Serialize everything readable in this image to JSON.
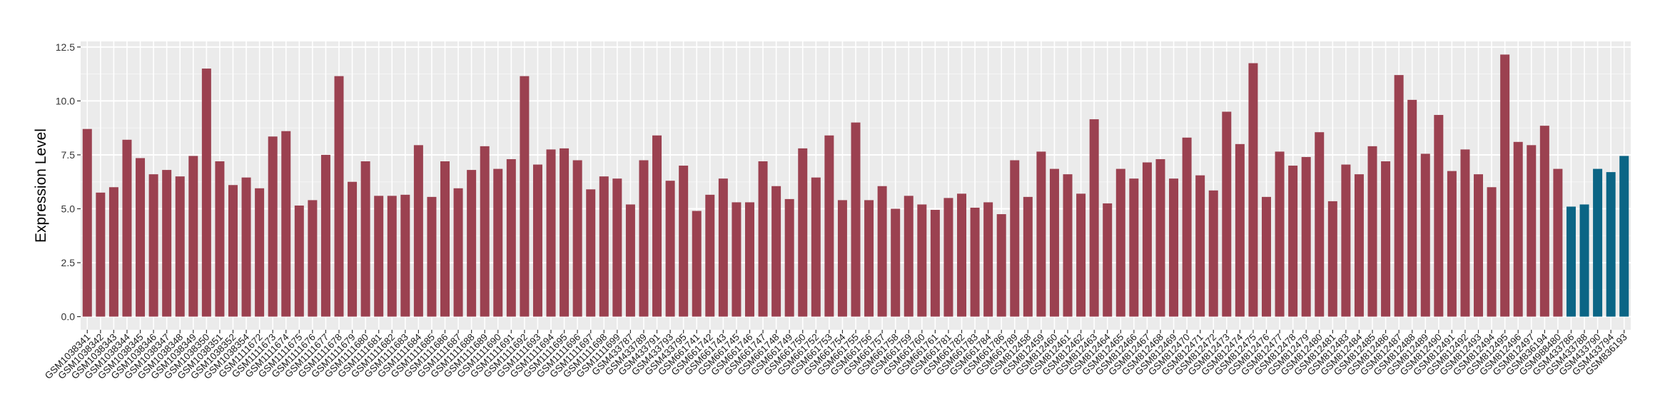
{
  "chart_data": {
    "type": "bar",
    "title": "",
    "xlabel": "",
    "ylabel": "Expression Level",
    "ylim": [
      -0.61,
      12.76
    ],
    "yticks": [
      "0.0",
      "2.5",
      "5.0",
      "7.5",
      "10.0",
      "12.5"
    ],
    "ytick_values": [
      0,
      2.5,
      5,
      7.5,
      10,
      12.5
    ],
    "grid": true,
    "legend": "none",
    "colors": {
      "group1": "#9B4150",
      "group2": "#0B6585",
      "panel": "#EBEBEB",
      "grid": "#FFFFFF"
    },
    "categories": [
      "GSM1038341",
      "GSM1038342",
      "GSM1038343",
      "GSM1038344",
      "GSM1038345",
      "GSM1038346",
      "GSM1038347",
      "GSM1038348",
      "GSM1038349",
      "GSM1038350",
      "GSM1038351",
      "GSM1038352",
      "GSM1038354",
      "GSM1111672",
      "GSM1111673",
      "GSM1111674",
      "GSM1111675",
      "GSM1111676",
      "GSM1111677",
      "GSM1111678",
      "GSM1111679",
      "GSM1111680",
      "GSM1111681",
      "GSM1111682",
      "GSM1111683",
      "GSM1111684",
      "GSM1111685",
      "GSM1111686",
      "GSM1111687",
      "GSM1111688",
      "GSM1111689",
      "GSM1111690",
      "GSM1111691",
      "GSM1111692",
      "GSM1111693",
      "GSM1111694",
      "GSM1111695",
      "GSM1111696",
      "GSM1111697",
      "GSM1111698",
      "GSM1111699",
      "GSM433787",
      "GSM433789",
      "GSM433791",
      "GSM433793",
      "GSM433795",
      "GSM661741",
      "GSM661742",
      "GSM661743",
      "GSM661745",
      "GSM661746",
      "GSM661747",
      "GSM661748",
      "GSM661749",
      "GSM661750",
      "GSM661752",
      "GSM661753",
      "GSM661754",
      "GSM661755",
      "GSM661756",
      "GSM661757",
      "GSM661758",
      "GSM661759",
      "GSM661760",
      "GSM661761",
      "GSM661781",
      "GSM661782",
      "GSM661783",
      "GSM661784",
      "GSM661786",
      "GSM661789",
      "GSM812458",
      "GSM812459",
      "GSM812460",
      "GSM812461",
      "GSM812462",
      "GSM812463",
      "GSM812464",
      "GSM812465",
      "GSM812466",
      "GSM812467",
      "GSM812468",
      "GSM812469",
      "GSM812470",
      "GSM812471",
      "GSM812472",
      "GSM812473",
      "GSM812474",
      "GSM812475",
      "GSM812476",
      "GSM812477",
      "GSM812478",
      "GSM812479",
      "GSM812480",
      "GSM812481",
      "GSM812483",
      "GSM812484",
      "GSM812485",
      "GSM812486",
      "GSM812487",
      "GSM812488",
      "GSM812489",
      "GSM812490",
      "GSM812491",
      "GSM812492",
      "GSM812493",
      "GSM812494",
      "GSM812495",
      "GSM812496",
      "GSM812497",
      "GSM836194",
      "GSM988480",
      "GSM433786",
      "GSM433788",
      "GSM433790",
      "GSM433794",
      "GSM836193"
    ],
    "values": [
      8.7,
      5.75,
      6.0,
      8.2,
      7.35,
      6.6,
      6.8,
      6.5,
      7.45,
      11.5,
      7.2,
      6.1,
      6.45,
      5.95,
      8.35,
      8.6,
      5.15,
      5.4,
      7.5,
      11.15,
      6.25,
      7.2,
      5.6,
      5.6,
      5.65,
      7.95,
      5.55,
      7.2,
      5.95,
      6.8,
      7.9,
      6.85,
      7.3,
      11.15,
      7.05,
      7.75,
      7.8,
      7.25,
      5.9,
      6.5,
      6.4,
      5.2,
      7.25,
      8.4,
      6.3,
      7.0,
      4.9,
      5.65,
      6.4,
      5.3,
      5.3,
      7.2,
      6.05,
      5.45,
      7.8,
      6.45,
      8.4,
      5.4,
      9.0,
      5.4,
      6.05,
      5.0,
      5.6,
      5.2,
      4.95,
      5.5,
      5.7,
      5.05,
      5.3,
      4.75,
      7.25,
      5.55,
      7.65,
      6.85,
      6.6,
      5.7,
      9.15,
      5.25,
      6.85,
      6.4,
      7.15,
      7.3,
      6.4,
      8.3,
      6.55,
      5.85,
      9.5,
      8.0,
      11.75,
      5.55,
      7.65,
      7.0,
      7.4,
      8.55,
      5.35,
      7.05,
      6.6,
      7.9,
      7.2,
      11.2,
      10.05,
      7.55,
      9.35,
      6.75,
      7.75,
      6.6,
      6.0,
      12.15,
      8.1,
      7.95,
      8.85,
      6.85,
      5.1,
      5.2,
      6.85,
      6.7,
      7.45
    ],
    "groups": [
      1,
      1,
      1,
      1,
      1,
      1,
      1,
      1,
      1,
      1,
      1,
      1,
      1,
      1,
      1,
      1,
      1,
      1,
      1,
      1,
      1,
      1,
      1,
      1,
      1,
      1,
      1,
      1,
      1,
      1,
      1,
      1,
      1,
      1,
      1,
      1,
      1,
      1,
      1,
      1,
      1,
      1,
      1,
      1,
      1,
      1,
      1,
      1,
      1,
      1,
      1,
      1,
      1,
      1,
      1,
      1,
      1,
      1,
      1,
      1,
      1,
      1,
      1,
      1,
      1,
      1,
      1,
      1,
      1,
      1,
      1,
      1,
      1,
      1,
      1,
      1,
      1,
      1,
      1,
      1,
      1,
      1,
      1,
      1,
      1,
      1,
      1,
      1,
      1,
      1,
      1,
      1,
      1,
      1,
      1,
      1,
      1,
      1,
      1,
      1,
      1,
      1,
      1,
      1,
      1,
      1,
      1,
      1,
      1,
      1,
      1,
      1,
      2,
      2,
      2,
      2,
      2
    ]
  }
}
